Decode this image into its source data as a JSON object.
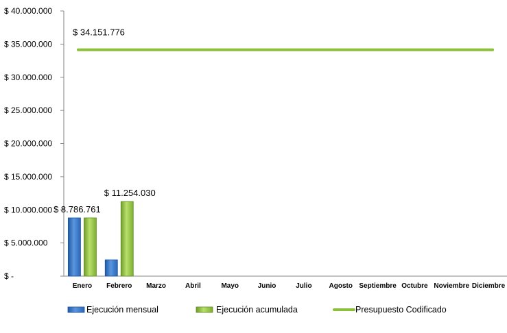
{
  "chart_data": {
    "type": "bar",
    "categories": [
      "Enero",
      "Febrero",
      "Marzo",
      "Abril",
      "Mayo",
      "Junio",
      "Julio",
      "Agosto",
      "Septiembre",
      "Octubre",
      "Noviembre",
      "Diciembre"
    ],
    "series": [
      {
        "name": "Ejecución mensual",
        "type": "bar",
        "color": "#2f6fc4",
        "values": [
          8786761,
          2467269,
          null,
          null,
          null,
          null,
          null,
          null,
          null,
          null,
          null,
          null
        ],
        "data_labels": [
          "$ 8.786.761",
          null,
          null,
          null,
          null,
          null,
          null,
          null,
          null,
          null,
          null,
          null
        ]
      },
      {
        "name": "Ejecución acumulada",
        "type": "bar",
        "color": "#8cbf3a",
        "values": [
          8786761,
          11254030,
          null,
          null,
          null,
          null,
          null,
          null,
          null,
          null,
          null,
          null
        ],
        "data_labels": [
          null,
          "$ 11.254.030",
          null,
          null,
          null,
          null,
          null,
          null,
          null,
          null,
          null,
          null
        ]
      },
      {
        "name": "Presupuesto Codificado",
        "type": "line",
        "color": "#8cbf3a",
        "values": [
          34151776,
          34151776,
          34151776,
          34151776,
          34151776,
          34151776,
          34151776,
          34151776,
          34151776,
          34151776,
          34151776,
          34151776
        ],
        "data_labels": [
          "$ 34.151.776",
          null,
          null,
          null,
          null,
          null,
          null,
          null,
          null,
          null,
          null,
          null
        ]
      }
    ],
    "ylim": [
      0,
      40000000
    ],
    "yticks": [
      0,
      5000000,
      10000000,
      15000000,
      20000000,
      25000000,
      30000000,
      35000000,
      40000000
    ],
    "ytick_labels": [
      "$ -",
      "$ 5.000.000",
      "$ 10.000.000",
      "$ 15.000.000",
      "$ 20.000.000",
      "$ 25.000.000",
      "$ 30.000.000",
      "$ 35.000.000",
      "$ 40.000.000"
    ],
    "title": "",
    "xlabel": "",
    "ylabel": "",
    "grid": false,
    "legend_position": "bottom"
  }
}
